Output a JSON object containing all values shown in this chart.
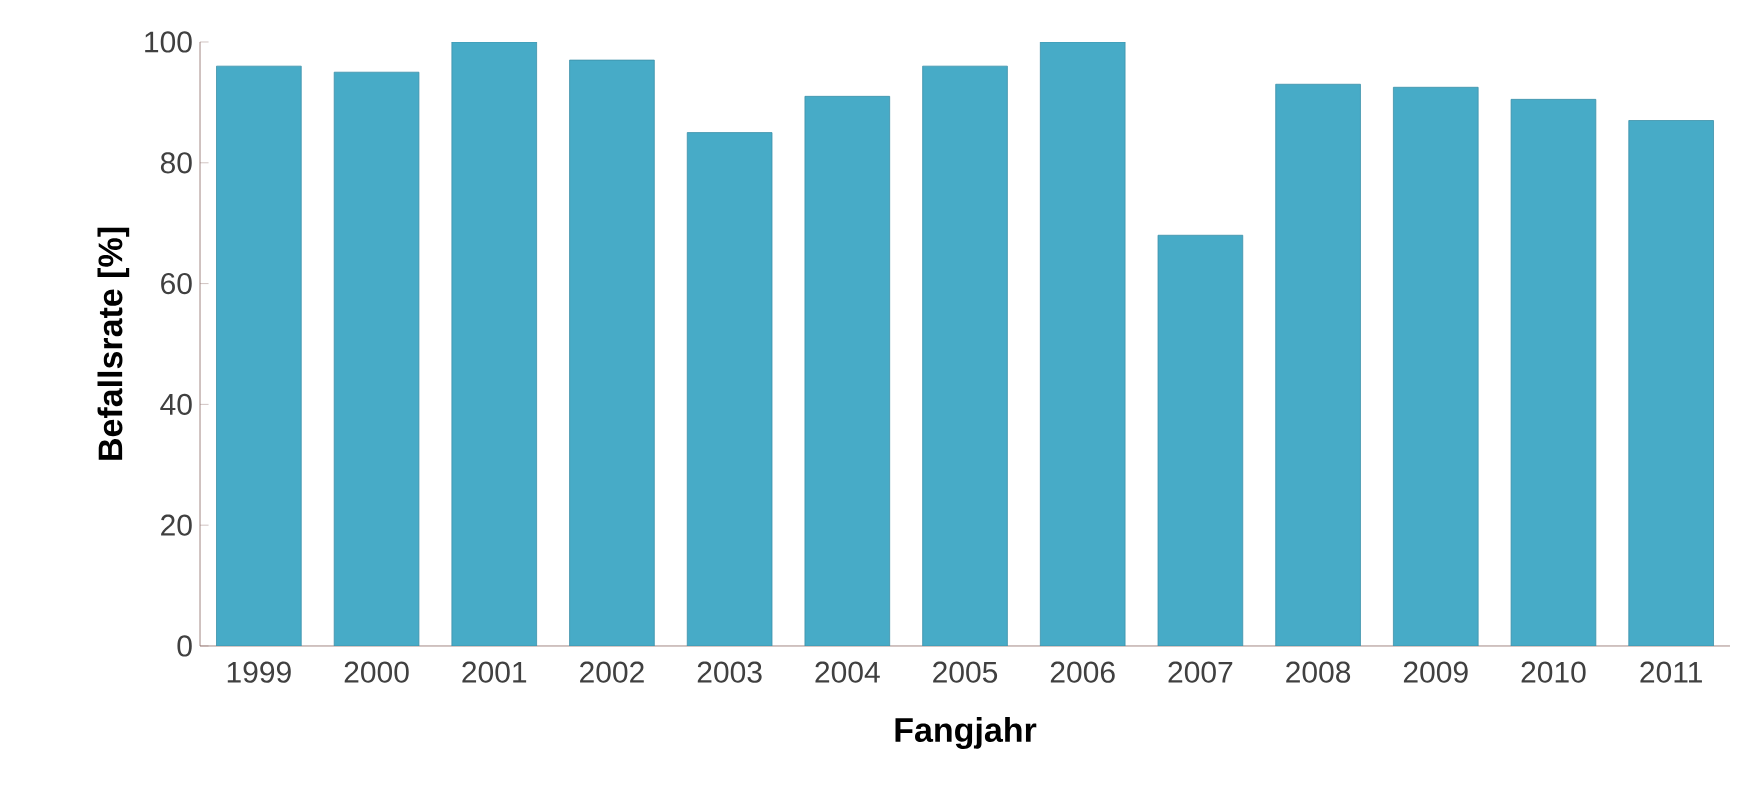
{
  "chart_data": {
    "type": "bar",
    "xlabel": "Fangjahr",
    "ylabel": "Befallsrate [%]",
    "categories": [
      "1999",
      "2000",
      "2001",
      "2002",
      "2003",
      "2004",
      "2005",
      "2006",
      "2007",
      "2008",
      "2009",
      "2010",
      "2011"
    ],
    "values": [
      96,
      95,
      100,
      97,
      85,
      91,
      96,
      100,
      68,
      93,
      92.5,
      90.5,
      87
    ],
    "color": "#47abc7",
    "ylim": [
      0,
      100
    ],
    "yticks": [
      0,
      20,
      40,
      60,
      80,
      100
    ],
    "grid": false
  }
}
